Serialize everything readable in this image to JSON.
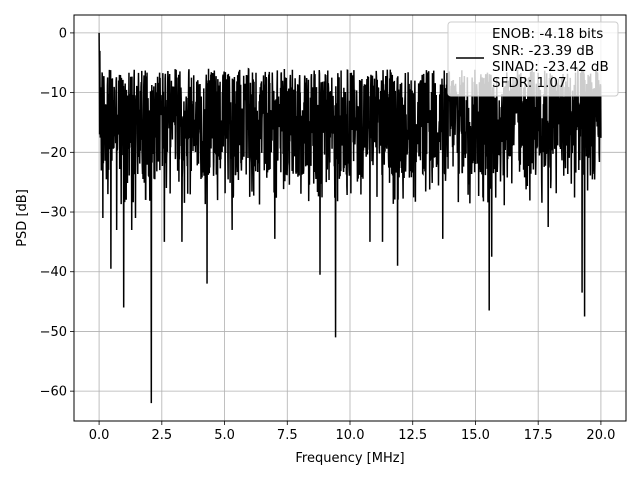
{
  "chart_data": {
    "type": "line",
    "title": "",
    "xlabel": "Frequency [MHz]",
    "ylabel": "PSD [dB]",
    "xlim": [
      -1.0,
      21.0
    ],
    "ylim": [
      -65.0,
      3.0
    ],
    "xticks": [
      0.0,
      2.5,
      5.0,
      7.5,
      10.0,
      12.5,
      15.0,
      17.5,
      20.0
    ],
    "xtick_labels": [
      "0.0",
      "2.5",
      "5.0",
      "7.5",
      "10.0",
      "12.5",
      "15.0",
      "17.5",
      "20.0"
    ],
    "yticks": [
      0,
      -10,
      -20,
      -30,
      -40,
      -50,
      -60
    ],
    "ytick_labels": [
      "0",
      "−10",
      "−20",
      "−30",
      "−40",
      "−50",
      "−60"
    ],
    "grid": true,
    "legend_position": "top-right",
    "legend": [
      "ENOB: -4.18 bits",
      "SNR: -23.39 dB",
      "SINAD: -23.42 dB",
      "SFDR: 1.07"
    ],
    "series": [
      {
        "color": "#000000",
        "x_range": [
          0.0,
          20.0
        ],
        "points": 2000,
        "noise_band_db": [
          -28,
          -6
        ],
        "peak": {
          "x": 0.0,
          "y": 0.0
        },
        "dips": [
          {
            "x": 0.15,
            "y": -31
          },
          {
            "x": 0.35,
            "y": -27
          },
          {
            "x": 0.47,
            "y": -39.5
          },
          {
            "x": 0.7,
            "y": -33
          },
          {
            "x": 0.98,
            "y": -46
          },
          {
            "x": 1.3,
            "y": -33
          },
          {
            "x": 1.45,
            "y": -31
          },
          {
            "x": 2.08,
            "y": -62
          },
          {
            "x": 2.6,
            "y": -35
          },
          {
            "x": 3.3,
            "y": -35
          },
          {
            "x": 4.3,
            "y": -42
          },
          {
            "x": 5.3,
            "y": -33
          },
          {
            "x": 7.0,
            "y": -34.5
          },
          {
            "x": 8.8,
            "y": -40.5
          },
          {
            "x": 9.42,
            "y": -51
          },
          {
            "x": 10.8,
            "y": -35
          },
          {
            "x": 11.3,
            "y": -35
          },
          {
            "x": 11.9,
            "y": -39
          },
          {
            "x": 13.7,
            "y": -34.5
          },
          {
            "x": 15.55,
            "y": -46.5
          },
          {
            "x": 15.65,
            "y": -37.5
          },
          {
            "x": 17.9,
            "y": -32.5
          },
          {
            "x": 19.25,
            "y": -43.5
          },
          {
            "x": 19.35,
            "y": -47.5
          }
        ]
      }
    ]
  }
}
